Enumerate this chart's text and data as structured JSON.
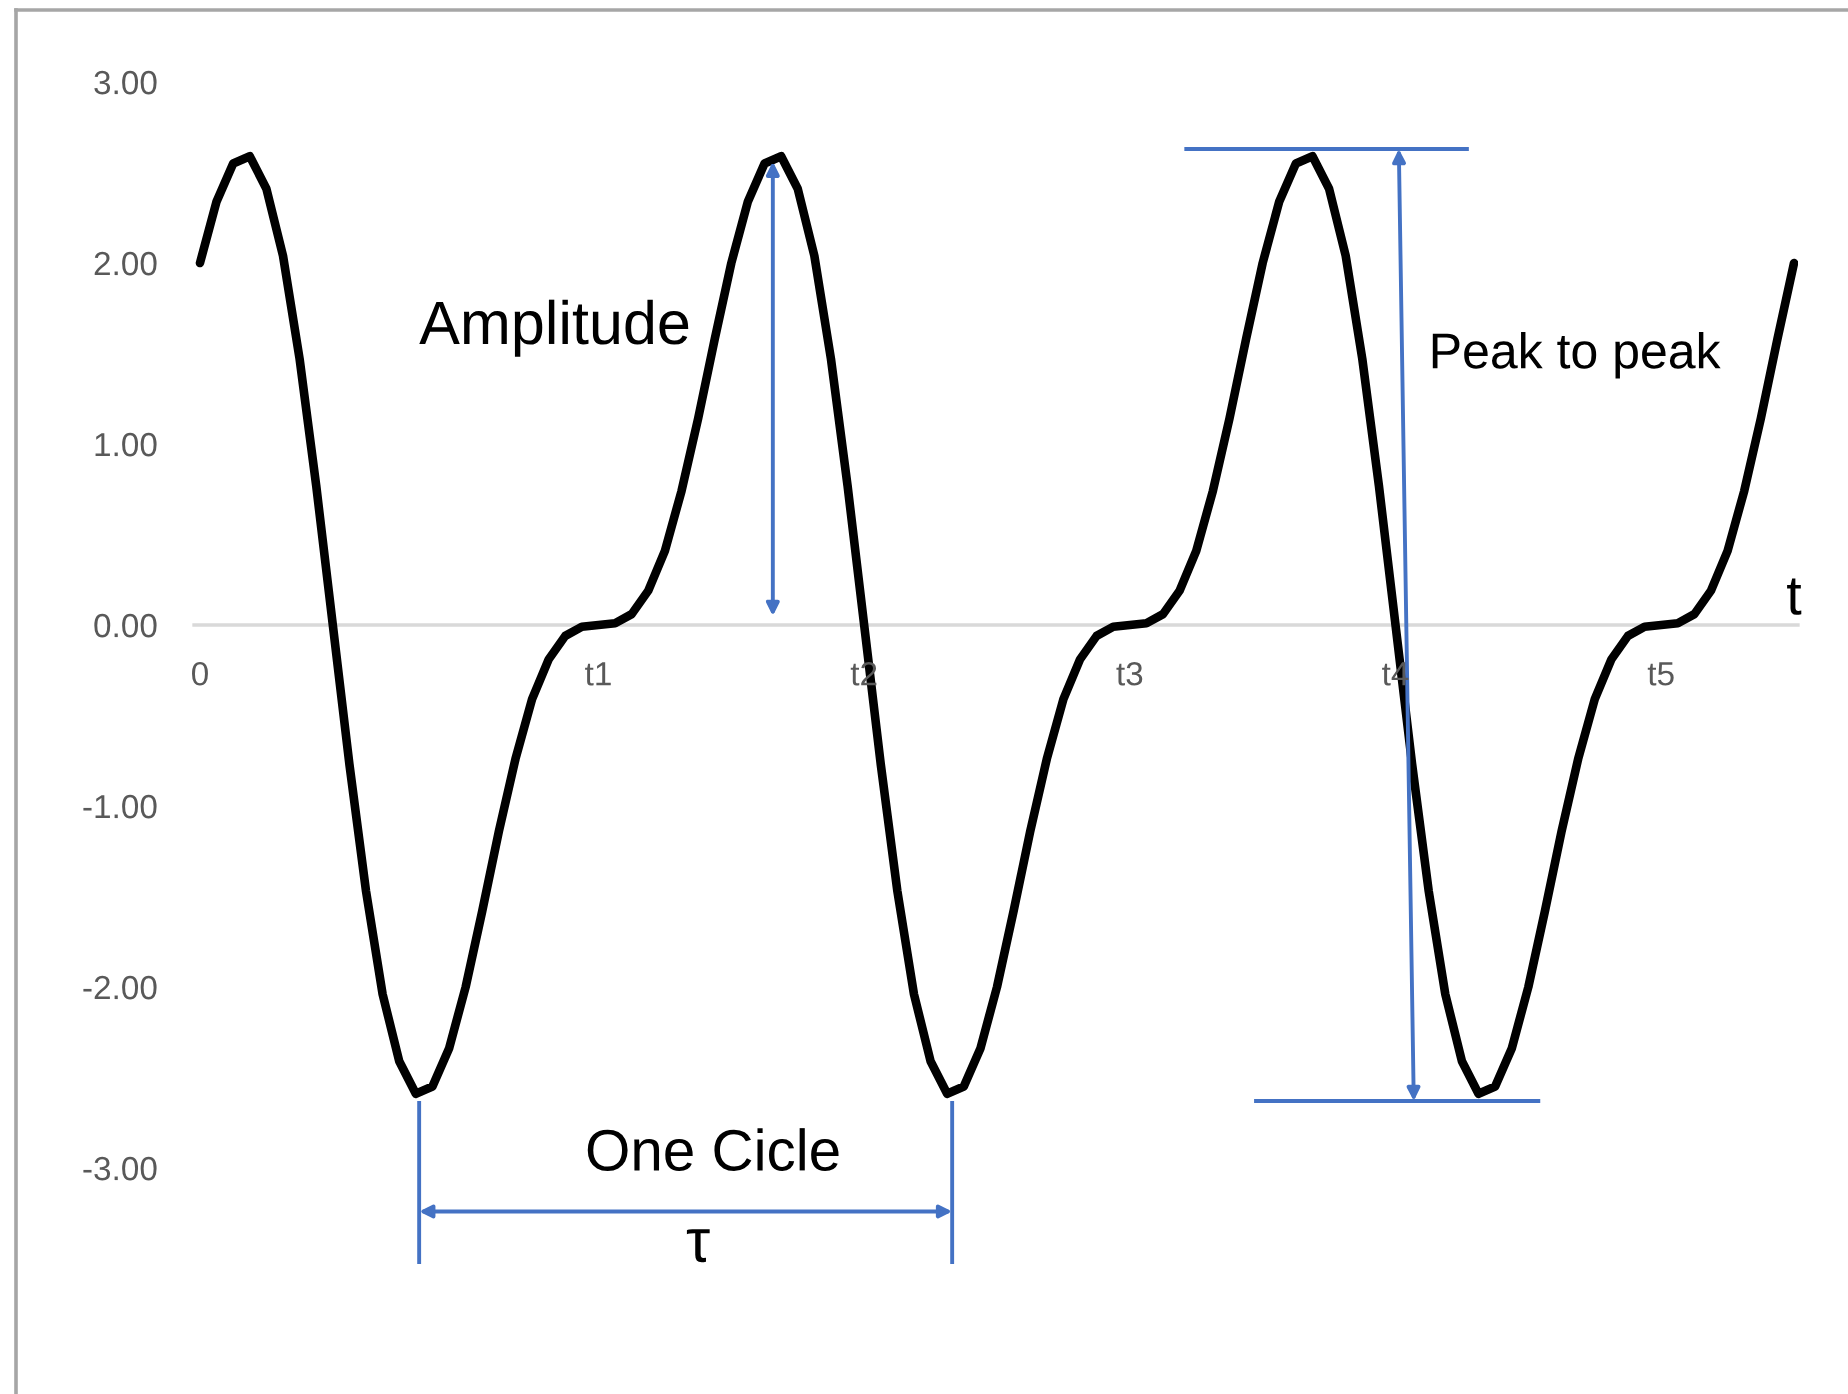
{
  "chart_data": {
    "type": "line",
    "categories": [
      "0",
      null,
      null,
      null,
      null,
      null,
      null,
      null,
      null,
      null,
      null,
      null,
      null,
      null,
      null,
      null,
      null,
      null,
      null,
      null,
      null,
      null,
      null,
      null,
      "t1",
      null,
      null,
      null,
      null,
      null,
      null,
      null,
      null,
      null,
      null,
      null,
      null,
      null,
      null,
      null,
      "t2",
      null,
      null,
      null,
      null,
      null,
      null,
      null,
      null,
      null,
      null,
      null,
      null,
      null,
      null,
      null,
      "t3",
      null,
      null,
      null,
      null,
      null,
      null,
      null,
      null,
      null,
      null,
      null,
      null,
      null,
      null,
      null,
      "t4",
      null,
      null,
      null,
      null,
      null,
      null,
      null,
      null,
      null,
      null,
      null,
      null,
      null,
      null,
      null,
      "t5",
      null,
      null,
      null,
      null,
      null,
      null,
      null,
      null
    ],
    "series": [
      {
        "color": "#000000",
        "values": [
          2.0,
          2.34,
          2.55,
          2.59,
          2.41,
          2.04,
          1.47,
          0.77,
          0.0,
          -0.77,
          -1.47,
          -2.04,
          -2.41,
          -2.59,
          -2.55,
          -2.34,
          -2.0,
          -1.58,
          -1.14,
          -0.74,
          -0.41,
          -0.19,
          -0.06,
          -0.01,
          0.0,
          0.01,
          0.06,
          0.19,
          0.41,
          0.74,
          1.14,
          1.58,
          2.0,
          2.34,
          2.55,
          2.59,
          2.41,
          2.04,
          1.47,
          0.77,
          0.0,
          -0.77,
          -1.47,
          -2.04,
          -2.41,
          -2.59,
          -2.55,
          -2.34,
          -2.0,
          -1.58,
          -1.14,
          -0.74,
          -0.41,
          -0.19,
          -0.06,
          -0.01,
          0.0,
          0.01,
          0.06,
          0.19,
          0.41,
          0.74,
          1.14,
          1.58,
          2.0,
          2.34,
          2.55,
          2.59,
          2.41,
          2.04,
          1.47,
          0.77,
          0.0,
          -0.77,
          -1.47,
          -2.04,
          -2.41,
          -2.59,
          -2.55,
          -2.34,
          -2.0,
          -1.58,
          -1.14,
          -0.74,
          -0.41,
          -0.19,
          -0.06,
          -0.01,
          0.0,
          0.01,
          0.06,
          0.19,
          0.41,
          0.74,
          1.14,
          1.58,
          2.0
        ]
      }
    ],
    "ylim": [
      -3,
      3
    ],
    "yticks": [
      {
        "value": -3,
        "label": "-3.00"
      },
      {
        "value": -2,
        "label": "-2.00"
      },
      {
        "value": -1,
        "label": "-1.00"
      },
      {
        "value": 0,
        "label": "0.00"
      },
      {
        "value": 1,
        "label": "1.00"
      },
      {
        "value": 2,
        "label": "2.00"
      },
      {
        "value": 3,
        "label": "3.00"
      }
    ],
    "xlabel": "t",
    "line_style": "solid",
    "annotations": [
      "Amplitude",
      "Peak to peak",
      "One Cicle",
      "τ"
    ]
  }
}
